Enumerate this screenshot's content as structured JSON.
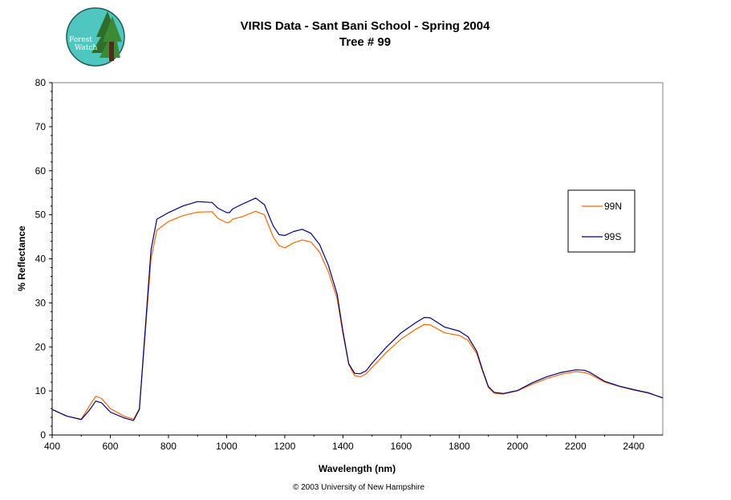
{
  "logo": {
    "line1": "Forest",
    "line2": "Watch"
  },
  "footer": "© 2003 University of New Hampshire",
  "colors": {
    "99N": "#ff6600",
    "99S": "#000080",
    "logo_bg": "#4fc6c0",
    "logo_tree": "#2e6e2a"
  },
  "chart_data": {
    "type": "line",
    "title": "VIRIS Data - Sant Bani School - Spring 2004",
    "subtitle": "Tree # 99",
    "xlabel": "Wavelength (nm)",
    "ylabel": "% Reflectance",
    "xlim": [
      400,
      2500
    ],
    "ylim": [
      0,
      80
    ],
    "xticks": [
      400,
      600,
      800,
      1000,
      1200,
      1400,
      1600,
      1800,
      2000,
      2200,
      2400
    ],
    "yticks": [
      0,
      10,
      20,
      30,
      40,
      50,
      60,
      70,
      80
    ],
    "grid": false,
    "legend": "right",
    "series": [
      {
        "name": "99N",
        "x": [
          400,
          450,
          500,
          530,
          550,
          570,
          600,
          650,
          680,
          700,
          720,
          740,
          760,
          800,
          850,
          900,
          950,
          970,
          1000,
          1010,
          1020,
          1050,
          1100,
          1130,
          1160,
          1180,
          1200,
          1230,
          1260,
          1290,
          1320,
          1350,
          1380,
          1400,
          1420,
          1440,
          1460,
          1480,
          1500,
          1550,
          1600,
          1650,
          1680,
          1700,
          1750,
          1800,
          1830,
          1860,
          1880,
          1900,
          1920,
          1950,
          2000,
          2050,
          2100,
          2150,
          2200,
          2230,
          2250,
          2300,
          2350,
          2400,
          2450,
          2500
        ],
        "y": [
          5.8,
          4.3,
          3.6,
          6.8,
          8.8,
          8.3,
          6.0,
          4.2,
          3.6,
          6.0,
          23.0,
          40.0,
          46.5,
          48.5,
          49.8,
          50.6,
          50.7,
          49.2,
          48.2,
          48.3,
          49.0,
          49.5,
          50.8,
          50.0,
          45.0,
          43.0,
          42.5,
          43.6,
          44.3,
          43.8,
          41.5,
          37.0,
          31.0,
          23.0,
          16.0,
          13.5,
          13.2,
          13.9,
          15.3,
          18.8,
          21.8,
          24.0,
          25.1,
          25.0,
          23.2,
          22.6,
          21.5,
          18.5,
          14.5,
          10.8,
          9.5,
          9.3,
          10.0,
          11.5,
          12.8,
          13.8,
          14.4,
          14.2,
          13.8,
          12.0,
          11.0,
          10.2,
          9.5,
          8.5
        ]
      },
      {
        "name": "99S",
        "x": [
          400,
          450,
          500,
          530,
          550,
          570,
          600,
          650,
          680,
          700,
          720,
          740,
          760,
          800,
          850,
          900,
          950,
          970,
          1000,
          1010,
          1020,
          1050,
          1100,
          1130,
          1160,
          1180,
          1200,
          1230,
          1260,
          1290,
          1320,
          1350,
          1380,
          1400,
          1420,
          1440,
          1460,
          1480,
          1500,
          1550,
          1600,
          1650,
          1680,
          1700,
          1750,
          1800,
          1830,
          1860,
          1880,
          1900,
          1920,
          1950,
          2000,
          2050,
          2100,
          2150,
          2200,
          2230,
          2250,
          2300,
          2350,
          2400,
          2450,
          2500
        ],
        "y": [
          5.8,
          4.3,
          3.5,
          5.8,
          7.7,
          7.3,
          5.2,
          3.8,
          3.3,
          5.8,
          24.0,
          42.0,
          49.0,
          50.5,
          52.0,
          53.0,
          52.8,
          51.5,
          50.5,
          50.5,
          51.3,
          52.3,
          53.8,
          52.3,
          47.5,
          45.5,
          45.3,
          46.2,
          46.7,
          45.8,
          43.2,
          38.5,
          32.0,
          23.5,
          16.2,
          14.0,
          13.9,
          14.6,
          16.3,
          20.0,
          23.2,
          25.5,
          26.7,
          26.6,
          24.5,
          23.6,
          22.3,
          19.0,
          14.8,
          11.0,
          9.7,
          9.4,
          10.1,
          11.8,
          13.2,
          14.2,
          14.8,
          14.7,
          14.2,
          12.2,
          11.1,
          10.3,
          9.6,
          8.4
        ]
      }
    ]
  }
}
